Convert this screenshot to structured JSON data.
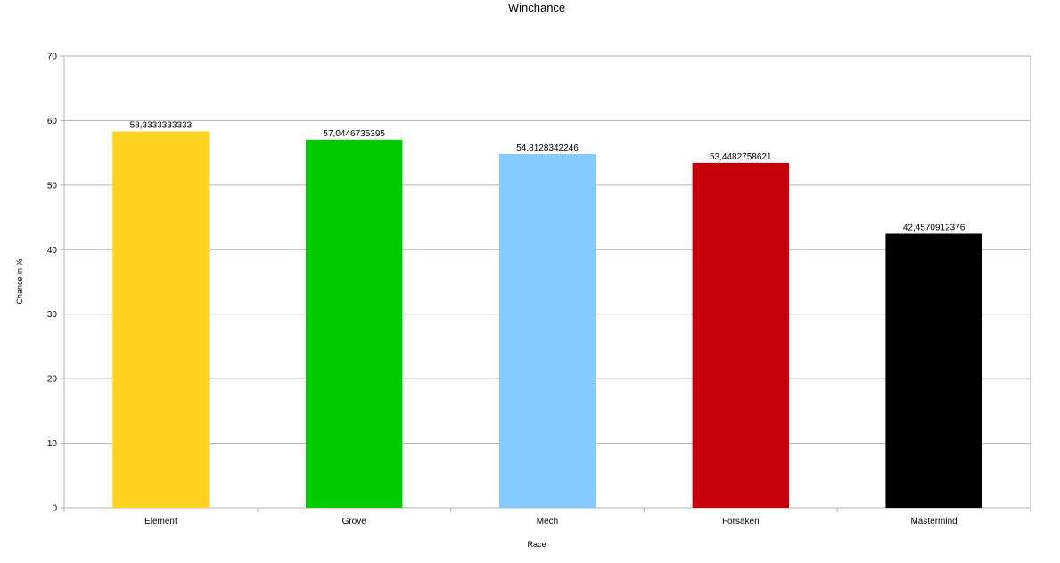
{
  "chart_data": {
    "type": "bar",
    "title": "Winchance",
    "xlabel": "Race",
    "ylabel": "Chance in %",
    "categories": [
      "Element",
      "Grove",
      "Mech",
      "Forsaken",
      "Mastermind"
    ],
    "values": [
      58.3333333333,
      57.0446735395,
      54.8128342246,
      53.4482758621,
      42.4570912376
    ],
    "value_labels": [
      "58,3333333333",
      "57,0446735395",
      "54,8128342246",
      "53,4482758621",
      "42,4570912376"
    ],
    "colors": [
      "#FFD320",
      "#00CC00",
      "#83CAFF",
      "#C5000B",
      "#000000"
    ],
    "ylim": [
      0,
      70
    ],
    "yticks": [
      0,
      10,
      20,
      30,
      40,
      50,
      60,
      70
    ],
    "grid": true,
    "legend": "none"
  }
}
